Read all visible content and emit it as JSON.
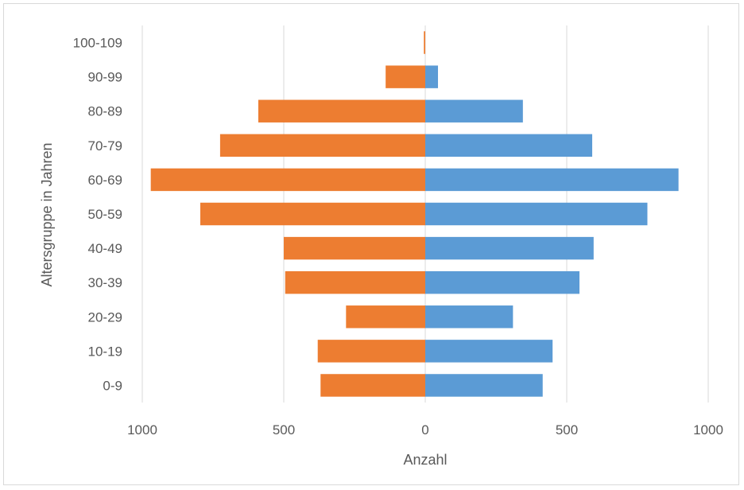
{
  "chart_data": {
    "type": "bar",
    "orientation": "horizontal",
    "categories": [
      "0-9",
      "10-19",
      "20-29",
      "30-39",
      "40-49",
      "50-59",
      "60-69",
      "70-79",
      "80-89",
      "90-99",
      "100-109"
    ],
    "series": [
      {
        "values": [
          -370,
          -380,
          -280,
          -495,
          -500,
          -795,
          -970,
          -725,
          -590,
          -140,
          -5
        ],
        "color": "#ed7d31"
      },
      {
        "values": [
          415,
          450,
          310,
          545,
          595,
          785,
          895,
          590,
          345,
          45,
          0
        ],
        "color": "#5b9bd5"
      }
    ],
    "xlim": [
      -1000,
      1000
    ],
    "xticks": [
      -1000,
      -500,
      0,
      500,
      1000
    ],
    "xtick_labels": [
      "1000",
      "500",
      "0",
      "500",
      "1000"
    ],
    "xlabel": "Anzahl",
    "ylabel": "Altersgruppe in Jahren",
    "grid": "vertical",
    "legend": "none"
  }
}
